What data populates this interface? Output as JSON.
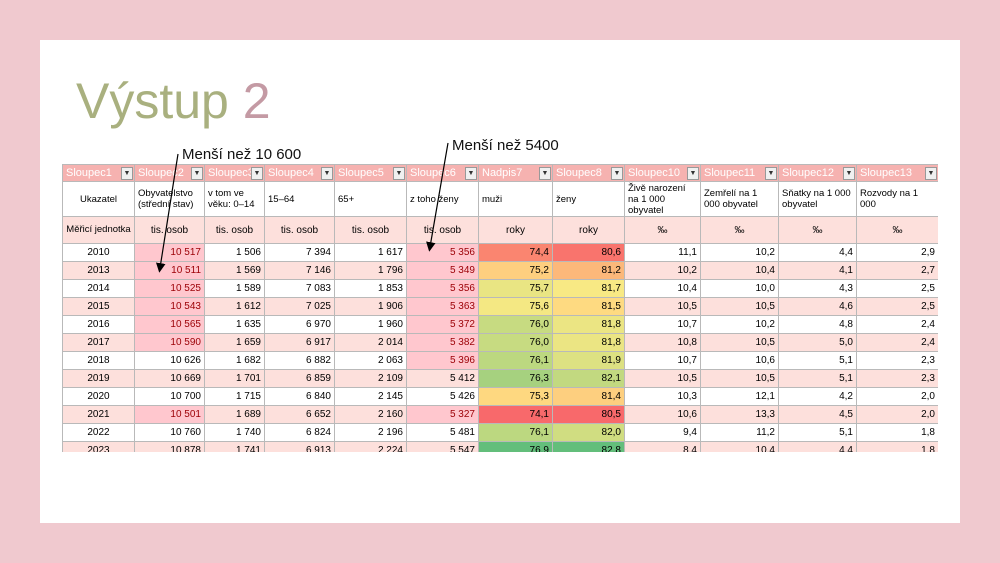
{
  "title": {
    "part1": "Výstup ",
    "part2": "2"
  },
  "annotations": {
    "left": "Menší než 10 600",
    "right": "Menší než 5400"
  },
  "table": {
    "filter_headers": [
      "Sloupec1",
      "Sloupec2",
      "Sloupec3",
      "Sloupec4",
      "Sloupec5",
      "Sloupec6",
      "Nadpis7",
      "Sloupec8",
      "Sloupec10",
      "Sloupec11",
      "Sloupec12",
      "Sloupec13"
    ],
    "indicator_row": [
      "Ukazatel",
      "Obyvatelstvo (střední stav)",
      "v tom ve věku: 0–14",
      "15–64",
      "65+",
      "z toho ženy",
      "muži",
      "ženy",
      "Živě narození na 1 000 obyvatel",
      "Zemřelí na 1 000 obyvatel",
      "Sňatky na 1 000 obyvatel",
      "Rozvody na 1 000"
    ],
    "unit_row": [
      "Měřicí jednotka",
      "tis. osob",
      "tis. osob",
      "tis. osob",
      "tis. osob",
      "tis. osob",
      "roky",
      "roky",
      "‰",
      "‰",
      "‰",
      "‰"
    ],
    "rows": [
      [
        "2010",
        "10 517",
        "1 506",
        "7 394",
        "1 617",
        "5 356",
        "74,4",
        "80,6",
        "11,1",
        "10,2",
        "4,4",
        "2,9"
      ],
      [
        "2013",
        "10 511",
        "1 569",
        "7 146",
        "1 796",
        "5 349",
        "75,2",
        "81,2",
        "10,2",
        "10,4",
        "4,1",
        "2,7"
      ],
      [
        "2014",
        "10 525",
        "1 589",
        "7 083",
        "1 853",
        "5 356",
        "75,7",
        "81,7",
        "10,4",
        "10,0",
        "4,3",
        "2,5"
      ],
      [
        "2015",
        "10 543",
        "1 612",
        "7 025",
        "1 906",
        "5 363",
        "75,6",
        "81,5",
        "10,5",
        "10,5",
        "4,6",
        "2,5"
      ],
      [
        "2016",
        "10 565",
        "1 635",
        "6 970",
        "1 960",
        "5 372",
        "76,0",
        "81,8",
        "10,7",
        "10,2",
        "4,8",
        "2,4"
      ],
      [
        "2017",
        "10 590",
        "1 659",
        "6 917",
        "2 014",
        "5 382",
        "76,0",
        "81,8",
        "10,8",
        "10,5",
        "5,0",
        "2,4"
      ],
      [
        "2018",
        "10 626",
        "1 682",
        "6 882",
        "2 063",
        "5 396",
        "76,1",
        "81,9",
        "10,7",
        "10,6",
        "5,1",
        "2,3"
      ],
      [
        "2019",
        "10 669",
        "1 701",
        "6 859",
        "2 109",
        "5 412",
        "76,3",
        "82,1",
        "10,5",
        "10,5",
        "5,1",
        "2,3"
      ],
      [
        "2020",
        "10 700",
        "1 715",
        "6 840",
        "2 145",
        "5 426",
        "75,3",
        "81,4",
        "10,3",
        "12,1",
        "4,2",
        "2,0"
      ],
      [
        "2021",
        "10 501",
        "1 689",
        "6 652",
        "2 160",
        "5 327",
        "74,1",
        "80,5",
        "10,6",
        "13,3",
        "4,5",
        "2,0"
      ],
      [
        "2022",
        "10 760",
        "1 740",
        "6 824",
        "2 196",
        "5 481",
        "76,1",
        "82,0",
        "9,4",
        "11,2",
        "5,1",
        "1,8"
      ],
      [
        "2023",
        "10 878",
        "1 741",
        "6 913",
        "2 224",
        "5 547",
        "76,9",
        "82,8",
        "8,4",
        "10,4",
        "4,4",
        "1,8"
      ]
    ],
    "highlight_colors": {
      "fill": "#ffc7ce",
      "text": "#9c0006"
    },
    "color_scale": {
      "low": "#f8696b",
      "mid": "#ffeb84",
      "high": "#63be7b"
    }
  }
}
